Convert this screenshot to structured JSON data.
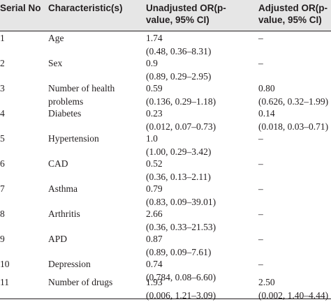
{
  "header": {
    "col1": "Serial No",
    "col2": "Characteristic(s)",
    "col3": "Unadjusted OR(p-value, 95% CI)",
    "col4": "Adjusted OR(p-value, 95% CI)"
  },
  "rows": [
    {
      "serial": "1",
      "characteristic": "Age",
      "unadj_or": "1.74",
      "unadj_ci": "(0.48, 0.36–8.31)",
      "adj_or": "–",
      "adj_ci": ""
    },
    {
      "serial": "2",
      "characteristic": "Sex",
      "unadj_or": "0.9",
      "unadj_ci": "(0.89, 0.29–2.95)",
      "adj_or": "–",
      "adj_ci": ""
    },
    {
      "serial": "3",
      "characteristic": "Number of health problems",
      "unadj_or": "0.59",
      "unadj_ci": "(0.136, 0.29–1.18)",
      "adj_or": "0.80",
      "adj_ci": "(0.626, 0.32–1.99)"
    },
    {
      "serial": "4",
      "characteristic": "Diabetes",
      "unadj_or": "0.23",
      "unadj_ci": "(0.012, 0.07–0.73)",
      "adj_or": "0.14",
      "adj_ci": "(0.018, 0.03–0.71)"
    },
    {
      "serial": "5",
      "characteristic": "Hypertension",
      "unadj_or": "1.0",
      "unadj_ci": "(1.00, 0.29–3.42)",
      "adj_or": "–",
      "adj_ci": ""
    },
    {
      "serial": "6",
      "characteristic": "CAD",
      "unadj_or": "0.52",
      "unadj_ci": "(0.36, 0.13–2.11)",
      "adj_or": "–",
      "adj_ci": ""
    },
    {
      "serial": "7",
      "characteristic": "Asthma",
      "unadj_or": "0.79",
      "unadj_ci": "(0.83, 0.09–39.01)",
      "adj_or": "–",
      "adj_ci": ""
    },
    {
      "serial": "8",
      "characteristic": "Arthritis",
      "unadj_or": "2.66",
      "unadj_ci": "(0.36, 0.33–21.53)",
      "adj_or": "–",
      "adj_ci": ""
    },
    {
      "serial": "9",
      "characteristic": "APD",
      "unadj_or": "0.87",
      "unadj_ci": "(0.89, 0.09–7.61)",
      "adj_or": "–",
      "adj_ci": ""
    },
    {
      "serial": "10",
      "characteristic": "Depression",
      "unadj_or": "0.74",
      "unadj_ci": "(0.784, 0.08–6.60)",
      "adj_or": "–",
      "adj_ci": ""
    },
    {
      "serial": "11",
      "characteristic": "Number of drugs",
      "unadj_or": "1.93",
      "unadj_ci": "(0.006, 1.21–3.09)",
      "adj_or": "2.50",
      "adj_ci": "(0.002, 1.40–4.44)"
    }
  ],
  "colors": {
    "header_bg": "#e6e6e6",
    "text": "#231f20",
    "rule": "#231f20"
  }
}
